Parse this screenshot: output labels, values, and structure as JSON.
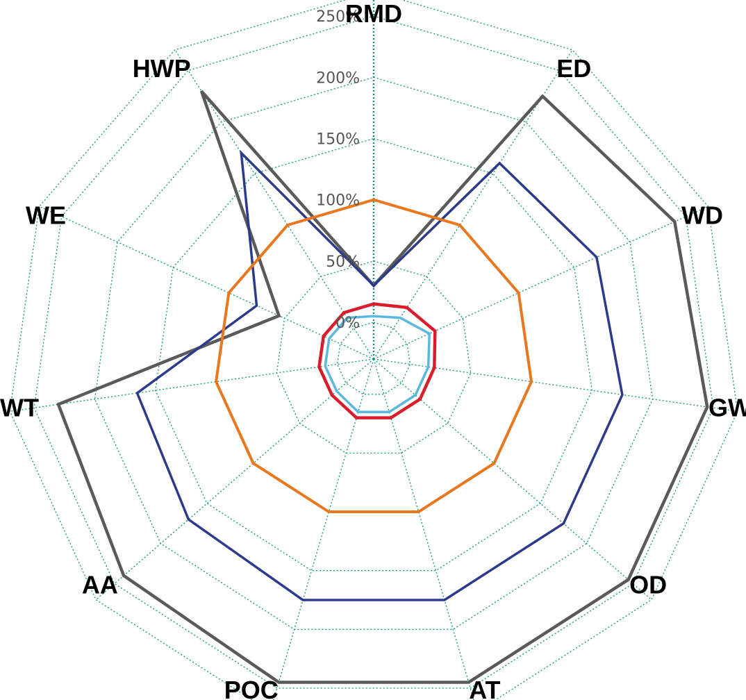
{
  "chart_data": {
    "type": "radar",
    "title": "",
    "axes": [
      "RMD",
      "ED",
      "WD",
      "GW",
      "OD",
      "AT",
      "POC",
      "AA",
      "WT",
      "WE",
      "HWP"
    ],
    "tick_labels": [
      "0%",
      "50%",
      "100%",
      "150%",
      "200%",
      "250%"
    ],
    "ticks": [
      0,
      50,
      100,
      150,
      200,
      250
    ],
    "rlim": [
      -30,
      270
    ],
    "grid": true,
    "legend": "none",
    "series": [
      {
        "color": "#5a5a5a",
        "values": [
          30,
          225,
          240,
          245,
          245,
          245,
          245,
          240,
          230,
          55,
          230
        ]
      },
      {
        "color": "#2b3a8a",
        "values": [
          30,
          160,
          170,
          175,
          175,
          175,
          175,
          170,
          165,
          75,
          170
        ]
      },
      {
        "color": "#e8771e",
        "values": [
          100,
          100,
          100,
          100,
          100,
          100,
          100,
          100,
          100,
          100,
          100
        ]
      },
      {
        "color": "#d81e2d",
        "values": [
          15,
          20,
          25,
          20,
          20,
          20,
          20,
          15,
          15,
          15,
          15
        ]
      },
      {
        "color": "#5ab8e0",
        "values": [
          5,
          10,
          20,
          15,
          15,
          15,
          15,
          10,
          10,
          10,
          10
        ]
      }
    ]
  }
}
